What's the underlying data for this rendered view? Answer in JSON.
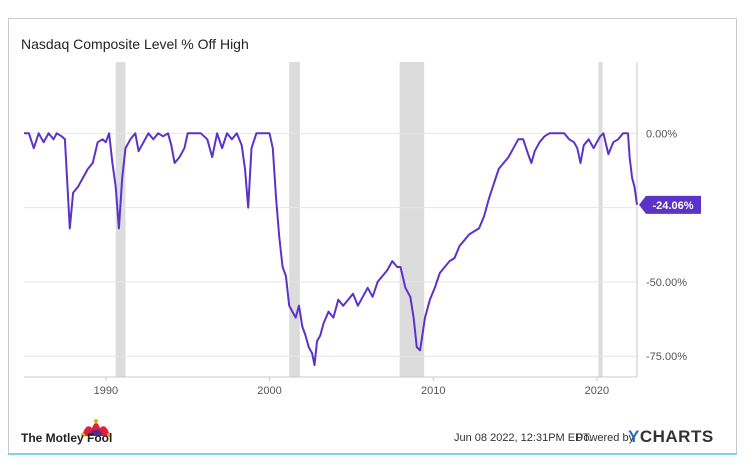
{
  "title": "Nasdaq Composite Level % Off High",
  "footer": {
    "date": "Jun 08 2022, 12:31PM EDT.",
    "powered_by": "Powered by",
    "brand": "YCHARTS",
    "brand_first": "Y",
    "brand_rest": "CHARTS",
    "fool": "The Motley Fool"
  },
  "colors": {
    "line": "#5b33c9",
    "recession": "#dcdcdc",
    "grid": "#e6e6e6",
    "axis": "#c9c9c9",
    "label": "#555555"
  },
  "chart_data": {
    "type": "line",
    "title": "Nasdaq Composite Level % Off High",
    "xlabel": "",
    "ylabel": "",
    "x_ticks": [
      1990,
      2000,
      2010,
      2020
    ],
    "y_ticks": [
      0,
      -25,
      -50,
      -75
    ],
    "y_tick_labels": [
      "0.00%",
      "",
      "-50.00%",
      "-75.00%"
    ],
    "xlim": [
      1985.0,
      2022.45
    ],
    "ylim": [
      -82,
      24
    ],
    "grid": true,
    "recessions": [
      [
        1990.6,
        1991.2
      ],
      [
        2001.2,
        2001.85
      ],
      [
        2007.95,
        2009.45
      ],
      [
        2020.1,
        2020.35
      ]
    ],
    "last_value_label": "-24.06%",
    "series": [
      {
        "x": [
          1985.0,
          1985.3,
          1985.6,
          1985.9,
          1986.2,
          1986.5,
          1986.8,
          1987.0,
          1987.3,
          1987.5,
          1987.8,
          1988.0,
          1988.3,
          1988.6,
          1988.9,
          1989.2,
          1989.5,
          1989.8,
          1990.0,
          1990.2,
          1990.4,
          1990.6,
          1990.8,
          1991.0,
          1991.2,
          1991.5,
          1991.8,
          1992.0,
          1992.3,
          1992.6,
          1992.9,
          1993.2,
          1993.5,
          1993.8,
          1994.0,
          1994.2,
          1994.5,
          1994.8,
          1995.0,
          1995.4,
          1995.8,
          1996.2,
          1996.5,
          1996.8,
          1997.1,
          1997.4,
          1997.7,
          1998.0,
          1998.3,
          1998.5,
          1998.7,
          1998.9,
          1999.2,
          1999.5,
          1999.8,
          2000.0,
          2000.2,
          2000.4,
          2000.6,
          2000.8,
          2001.0,
          2001.2,
          2001.4,
          2001.6,
          2001.8,
          2002.0,
          2002.2,
          2002.4,
          2002.6,
          2002.75,
          2002.9,
          2003.1,
          2003.3,
          2003.6,
          2003.9,
          2004.2,
          2004.5,
          2004.8,
          2005.1,
          2005.4,
          2005.7,
          2006.0,
          2006.3,
          2006.6,
          2006.9,
          2007.2,
          2007.5,
          2007.8,
          2008.0,
          2008.3,
          2008.6,
          2008.8,
          2009.0,
          2009.2,
          2009.5,
          2009.8,
          2010.1,
          2010.4,
          2010.7,
          2011.0,
          2011.3,
          2011.6,
          2011.9,
          2012.2,
          2012.5,
          2012.8,
          2013.1,
          2013.4,
          2013.7,
          2014.0,
          2014.3,
          2014.6,
          2014.9,
          2015.2,
          2015.5,
          2015.8,
          2016.0,
          2016.2,
          2016.5,
          2016.8,
          2017.1,
          2017.4,
          2017.7,
          2018.0,
          2018.3,
          2018.6,
          2018.8,
          2019.0,
          2019.2,
          2019.5,
          2019.8,
          2020.0,
          2020.2,
          2020.4,
          2020.7,
          2021.0,
          2021.3,
          2021.6,
          2021.9,
          2022.0,
          2022.15,
          2022.3,
          2022.45
        ],
        "y": [
          0,
          0,
          -5,
          0,
          -3,
          0,
          -2,
          0,
          -1,
          -2,
          -32,
          -20,
          -18,
          -15,
          -12,
          -10,
          -3,
          -2,
          -3,
          0,
          -10,
          -18,
          -32,
          -15,
          -5,
          -2,
          0,
          -6,
          -3,
          0,
          -2,
          0,
          -1,
          0,
          -4,
          -10,
          -8,
          -5,
          0,
          0,
          0,
          -2,
          -8,
          0,
          -5,
          0,
          -2,
          0,
          -4,
          -12,
          -25,
          -5,
          0,
          0,
          0,
          0,
          -5,
          -22,
          -35,
          -45,
          -48,
          -58,
          -60,
          -62,
          -58,
          -65,
          -68,
          -72,
          -74,
          -78,
          -70,
          -68,
          -64,
          -60,
          -62,
          -56,
          -58,
          -56,
          -54,
          -58,
          -55,
          -52,
          -55,
          -50,
          -48,
          -46,
          -43,
          -45,
          -45,
          -52,
          -55,
          -62,
          -72,
          -73,
          -62,
          -56,
          -52,
          -47,
          -45,
          -43,
          -42,
          -38,
          -36,
          -34,
          -33,
          -32,
          -28,
          -22,
          -17,
          -12,
          -10,
          -8,
          -5,
          -2,
          -2,
          -7,
          -10,
          -6,
          -3,
          -1,
          0,
          0,
          0,
          0,
          -2,
          -3,
          -5,
          -10,
          -4,
          -2,
          -5,
          -3,
          -1,
          0,
          -7,
          -3,
          -2,
          0,
          0,
          -8,
          -15,
          -18,
          -24.06
        ]
      }
    ]
  }
}
